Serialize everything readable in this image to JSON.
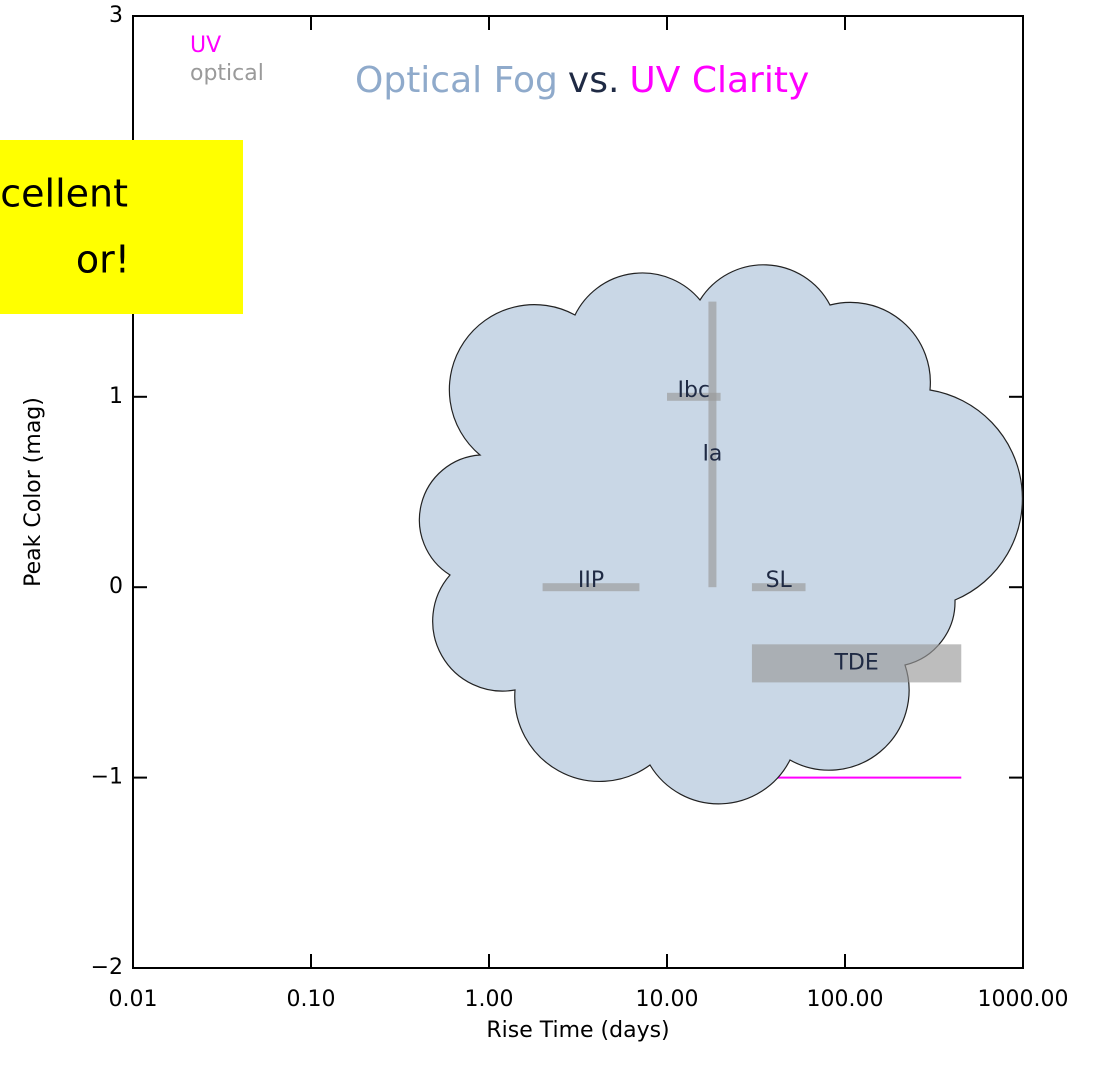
{
  "chart_data": {
    "type": "range",
    "title_parts": [
      {
        "text": "Optical Fog",
        "color": "#8faacb"
      },
      {
        "text": "vs.",
        "color": "#1f2a44"
      },
      {
        "text": "UV Clarity",
        "color": "#ff00ff"
      }
    ],
    "callout": [
      "cellent",
      "or!"
    ],
    "x_label": "Rise Time (days)",
    "y_label": "Peak Color (mag)",
    "xlim": [
      0.01,
      1000
    ],
    "ylim": [
      -2,
      3
    ],
    "log_x": true,
    "xticks": [
      {
        "value": 0.01,
        "label": "0.01"
      },
      {
        "value": 0.1,
        "label": "0.10"
      },
      {
        "value": 1,
        "label": "1.00"
      },
      {
        "value": 10,
        "label": "10.00"
      },
      {
        "value": 100,
        "label": "100.00"
      },
      {
        "value": 1000,
        "label": "1000.00"
      }
    ],
    "yticks": [
      {
        "value": -2,
        "label": "−2"
      },
      {
        "value": -1,
        "label": "−1"
      },
      0,
      1,
      3
    ],
    "series": [
      {
        "name": "UV",
        "color": "#ff00ff",
        "items": [
          {
            "label": "TDE",
            "x": [
              30,
              450
            ],
            "y": [
              -1,
              -1
            ]
          }
        ]
      },
      {
        "name": "optical",
        "color": "#9a9a9a",
        "items": [
          {
            "label": "Ibc",
            "x": [
              10,
              20
            ],
            "y": [
              1,
              1
            ]
          },
          {
            "label": "Ia",
            "x": [
              18,
              18
            ],
            "y": [
              0,
              1.5
            ]
          },
          {
            "label": "IIP",
            "x": [
              2,
              7
            ],
            "y": [
              0,
              0
            ]
          },
          {
            "label": "SL",
            "x": [
              30,
              60
            ],
            "y": [
              0,
              0
            ]
          },
          {
            "label": "TDE",
            "x": [
              30,
              450
            ],
            "y": [
              -0.3,
              -0.5
            ]
          }
        ]
      }
    ]
  }
}
